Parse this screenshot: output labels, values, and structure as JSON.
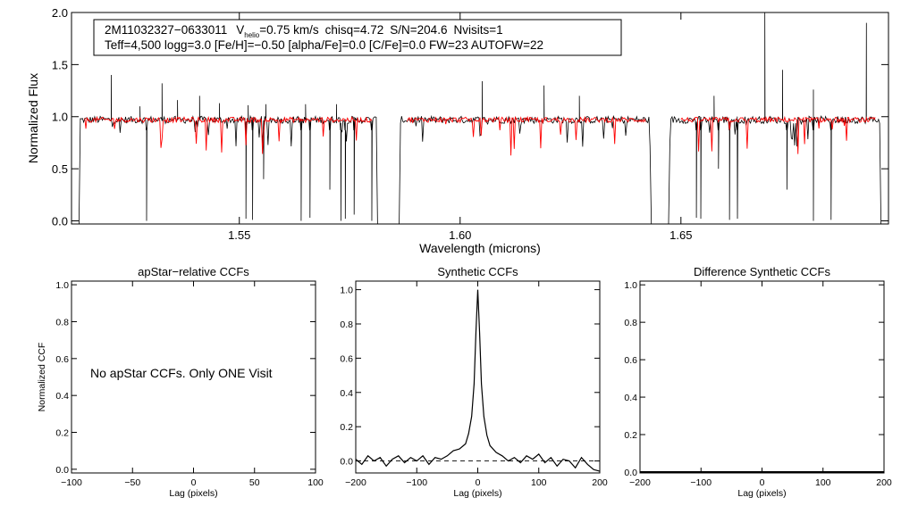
{
  "chart_data": [
    {
      "id": "spectrum",
      "type": "line",
      "title": "",
      "xlabel": "Wavelength (microns)",
      "ylabel": "Normalized Flux",
      "xlim": [
        1.512,
        1.697
      ],
      "ylim": [
        -0.03,
        2.0
      ],
      "xticks": [
        1.55,
        1.6,
        1.65
      ],
      "xtick_labels": [
        "1.55",
        "1.60",
        "1.65"
      ],
      "yticks": [
        0.0,
        0.5,
        1.0,
        1.5,
        2.0
      ],
      "ytick_labels": [
        "0.0",
        "0.5",
        "1.0",
        "1.5",
        "2.0"
      ],
      "chips": [
        [
          1.514,
          1.581
        ],
        [
          1.5865,
          1.643
        ],
        [
          1.6475,
          1.695
        ]
      ],
      "model_chips": [
        [
          1.515,
          1.58
        ],
        [
          1.588,
          1.642
        ],
        [
          1.65,
          1.694
        ]
      ],
      "continuum": 0.97,
      "emission_spikes": [
        {
          "x": 1.521,
          "y": 1.4
        },
        {
          "x": 1.5275,
          "y": 1.1
        },
        {
          "x": 1.5325,
          "y": 1.32
        },
        {
          "x": 1.536,
          "y": 1.16
        },
        {
          "x": 1.541,
          "y": 1.2
        },
        {
          "x": 1.5455,
          "y": 1.13
        },
        {
          "x": 1.552,
          "y": 1.11
        },
        {
          "x": 1.556,
          "y": 1.12
        },
        {
          "x": 1.565,
          "y": 1.12
        },
        {
          "x": 1.572,
          "y": 1.12
        },
        {
          "x": 1.605,
          "y": 1.34
        },
        {
          "x": 1.619,
          "y": 1.3
        },
        {
          "x": 1.627,
          "y": 1.2
        },
        {
          "x": 1.6575,
          "y": 1.2
        },
        {
          "x": 1.669,
          "y": 2.0
        },
        {
          "x": 1.673,
          "y": 1.45
        },
        {
          "x": 1.68,
          "y": 1.26
        },
        {
          "x": 1.692,
          "y": 1.9
        }
      ],
      "deep_absorptions": [
        {
          "x": 1.529,
          "y": 0.0
        },
        {
          "x": 1.5515,
          "y": 0.02
        },
        {
          "x": 1.553,
          "y": 0.01
        },
        {
          "x": 1.5555,
          "y": 0.4
        },
        {
          "x": 1.564,
          "y": 0.0
        },
        {
          "x": 1.566,
          "y": 0.03
        },
        {
          "x": 1.5705,
          "y": 0.3
        },
        {
          "x": 1.573,
          "y": 0.0
        },
        {
          "x": 1.574,
          "y": 0.02
        },
        {
          "x": 1.576,
          "y": 0.06
        },
        {
          "x": 1.58,
          "y": 0.0
        },
        {
          "x": 1.6535,
          "y": 0.03
        },
        {
          "x": 1.6545,
          "y": 0.02
        },
        {
          "x": 1.6585,
          "y": 0.5
        },
        {
          "x": 1.661,
          "y": 0.01
        },
        {
          "x": 1.6628,
          "y": 0.02
        },
        {
          "x": 1.674,
          "y": 0.3
        },
        {
          "x": 1.68,
          "y": 0.0
        },
        {
          "x": 1.684,
          "y": 0.01
        }
      ],
      "series": [
        {
          "name": "observed",
          "color": "#000000"
        },
        {
          "name": "model",
          "color": "#ff0000"
        }
      ],
      "info_line1": {
        "star_id": "2M11032327−0633011",
        "vhelio_prefix": "V",
        "vhelio_subscript": "helio",
        "vhelio_value": "=0.75 km/s",
        "chisq": "chisq=4.72",
        "snr": "S/N=204.6",
        "nvisits": "Nvisits=1"
      },
      "info_line2": "Teff=4,500 logg=3.0 [Fe/H]=−0.50 [alpha/Fe]=0.0 [C/Fe]=0.0 FW=23 AUTOFW=22"
    },
    {
      "id": "apstar_ccf",
      "type": "line",
      "title": "apStar−relative CCFs",
      "xlabel": "Lag (pixels)",
      "ylabel": "Normalized CCF",
      "xlim": [
        -100,
        100
      ],
      "ylim": [
        -0.02,
        1.02
      ],
      "xticks": [
        -100,
        -50,
        0,
        50,
        100
      ],
      "xtick_labels": [
        "−100",
        "−50",
        "0",
        "50",
        "100"
      ],
      "yticks": [
        0.0,
        0.2,
        0.4,
        0.6,
        0.8,
        1.0
      ],
      "ytick_labels": [
        "0.0",
        "0.2",
        "0.4",
        "0.6",
        "0.8",
        "1.0"
      ],
      "note": "No apStar CCFs.  Only ONE Visit",
      "series": []
    },
    {
      "id": "synthetic_ccf",
      "type": "line",
      "title": "Synthetic CCFs",
      "xlabel": "Lag (pixels)",
      "ylabel": "",
      "xlim": [
        -200,
        200
      ],
      "ylim": [
        -0.07,
        1.05
      ],
      "xticks": [
        -200,
        -100,
        0,
        100,
        200
      ],
      "xtick_labels": [
        "−200",
        "−100",
        "0",
        "100",
        "200"
      ],
      "yticks": [
        0.0,
        0.2,
        0.4,
        0.6,
        0.8,
        1.0
      ],
      "ytick_labels": [
        "0.0",
        "0.2",
        "0.4",
        "0.6",
        "0.8",
        "1.0"
      ],
      "zero_line": 0.0,
      "series": [
        {
          "name": "ccf",
          "x": [
            -200,
            -190,
            -180,
            -170,
            -160,
            -150,
            -140,
            -130,
            -120,
            -110,
            -100,
            -90,
            -80,
            -70,
            -60,
            -50,
            -40,
            -30,
            -20,
            -15,
            -10,
            -6,
            -3,
            0,
            3,
            6,
            10,
            15,
            20,
            30,
            40,
            50,
            60,
            70,
            80,
            90,
            100,
            110,
            120,
            130,
            140,
            150,
            160,
            170,
            180,
            190,
            200
          ],
          "y": [
            0.01,
            -0.02,
            0.03,
            0.0,
            0.02,
            -0.03,
            0.01,
            0.03,
            -0.01,
            0.02,
            0.0,
            0.03,
            -0.02,
            0.02,
            0.01,
            0.03,
            0.06,
            0.07,
            0.1,
            0.16,
            0.26,
            0.45,
            0.75,
            1.0,
            0.75,
            0.45,
            0.26,
            0.15,
            0.09,
            0.05,
            0.03,
            0.0,
            0.02,
            -0.01,
            0.03,
            0.01,
            0.04,
            -0.01,
            0.02,
            -0.03,
            0.01,
            0.0,
            -0.04,
            0.02,
            -0.02,
            -0.05,
            -0.06
          ]
        }
      ]
    },
    {
      "id": "difference_ccf",
      "type": "line",
      "title": "Difference Synthetic CCFs",
      "xlabel": "Lag (pixels)",
      "ylabel": "",
      "xlim": [
        -200,
        200
      ],
      "ylim": [
        -0.005,
        1.02
      ],
      "xticks": [
        -200,
        -100,
        0,
        100,
        200
      ],
      "xtick_labels": [
        "−200",
        "−100",
        "0",
        "100",
        "200"
      ],
      "yticks": [
        0.0,
        0.2,
        0.4,
        0.6,
        0.8,
        1.0
      ],
      "ytick_labels": [
        "0.0",
        "0.2",
        "0.4",
        "0.6",
        "0.8",
        "1.0"
      ],
      "series": [
        {
          "name": "difference",
          "x": [
            -200,
            200
          ],
          "y": [
            0.0,
            0.0
          ]
        }
      ]
    }
  ]
}
